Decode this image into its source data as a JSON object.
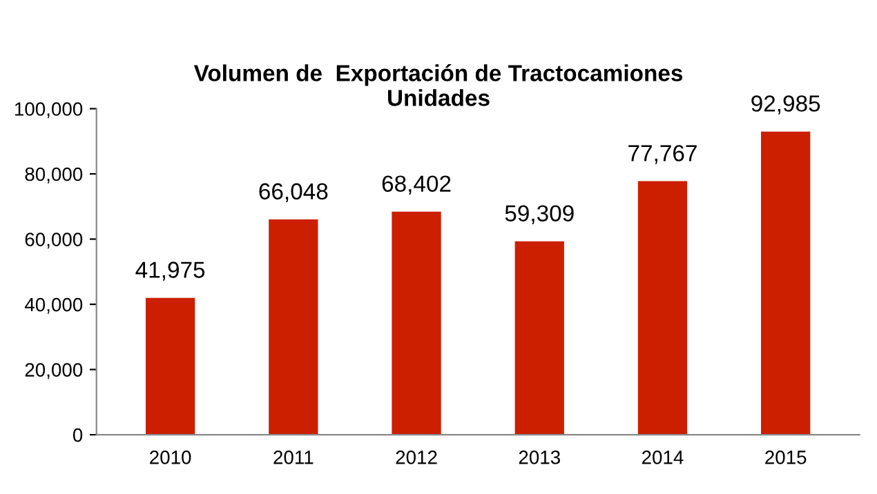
{
  "chart_data": {
    "type": "bar",
    "title": "Volumen de  Exportación de Tractocamiones\nUnidades",
    "categories": [
      "2010",
      "2011",
      "2012",
      "2013",
      "2014",
      "2015"
    ],
    "values": [
      41975,
      66048,
      68402,
      59309,
      77767,
      92985
    ],
    "color": "#cc1f00",
    "value_labels": [
      "41,975",
      "66,048",
      "68,402",
      "59,309",
      "77,767",
      "92,985"
    ],
    "ylim": [
      0,
      100000
    ],
    "yticks": [
      {
        "value": 0,
        "label": "0"
      },
      {
        "value": 20000,
        "label": "20,000"
      },
      {
        "value": 40000,
        "label": "40,000"
      },
      {
        "value": 60000,
        "label": "60,000"
      },
      {
        "value": 80000,
        "label": "80,000"
      },
      {
        "value": 100000,
        "label": "100,000"
      }
    ],
    "grid": false
  }
}
